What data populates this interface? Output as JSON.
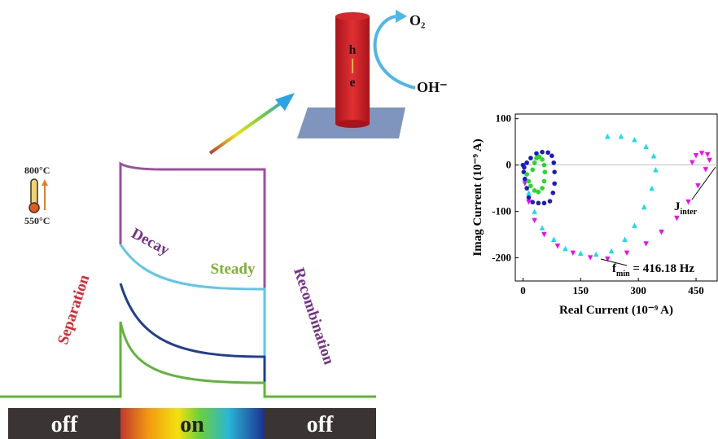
{
  "diagram": {
    "bar_labels": [
      "off",
      "on",
      "off"
    ],
    "separation": "Separation",
    "decay": "Decay",
    "steady": "Steady",
    "recombination": "Recombination",
    "temp_high": "800°C",
    "temp_low": "550°C",
    "hole": "h",
    "electron": "e",
    "oxygen": "O₂",
    "hydroxide": "OH⁻"
  },
  "chart_data": {
    "type": "scatter",
    "x_label": "Real Current (10⁻⁹ A)",
    "y_label": "Imag Current (10⁻⁹ A)",
    "xlim": [
      -20,
      505
    ],
    "ylim": [
      -250,
      110
    ],
    "xticks": [
      0,
      150,
      300,
      450
    ],
    "yticks": [
      100,
      0,
      -100,
      -200
    ],
    "zero_line": true,
    "annotations": [
      {
        "text": "J",
        "sub": "inter"
      },
      {
        "text": "f",
        "sub": "min",
        "suffix": " = 416.18 Hz"
      }
    ],
    "series": [
      {
        "color": "#ff00ff",
        "marker": "triangle-down",
        "x": [
          5,
          15,
          30,
          55,
          90,
          130,
          175,
          220,
          270,
          320,
          360,
          400,
          430,
          455,
          475,
          485,
          480,
          465,
          450,
          440
        ],
        "values": [
          -40,
          -80,
          -120,
          -150,
          -175,
          -190,
          -200,
          -203,
          -190,
          -170,
          -145,
          -115,
          -80,
          -45,
          -10,
          10,
          22,
          25,
          20,
          5
        ]
      },
      {
        "color": "#00e5ee",
        "marker": "triangle-up",
        "x": [
          5,
          15,
          30,
          50,
          80,
          110,
          150,
          190,
          230,
          265,
          290,
          315,
          335,
          345,
          340,
          320,
          290,
          255,
          220
        ],
        "values": [
          -30,
          -60,
          -100,
          -135,
          -160,
          -180,
          -190,
          -192,
          -185,
          -160,
          -130,
          -90,
          -50,
          -10,
          20,
          40,
          55,
          62,
          62
        ]
      },
      {
        "color": "#1a1acc",
        "marker": "circle",
        "x": [
          0,
          2,
          5,
          10,
          15,
          25,
          40,
          55,
          70,
          78,
          82,
          82,
          80,
          75,
          65,
          50,
          35,
          20,
          10,
          3
        ],
        "values": [
          0,
          -15,
          -30,
          -50,
          -70,
          -80,
          -82,
          -82,
          -78,
          -60,
          -40,
          -15,
          5,
          20,
          27,
          28,
          25,
          15,
          5,
          -5
        ]
      },
      {
        "color": "#22dd22",
        "marker": "circle",
        "x": [
          10,
          15,
          20,
          30,
          40,
          50,
          55,
          57,
          55,
          50,
          42,
          35,
          30,
          25
        ],
        "values": [
          -20,
          -35,
          -45,
          -55,
          -58,
          -50,
          -35,
          -15,
          0,
          12,
          18,
          15,
          5,
          -10
        ]
      }
    ]
  }
}
